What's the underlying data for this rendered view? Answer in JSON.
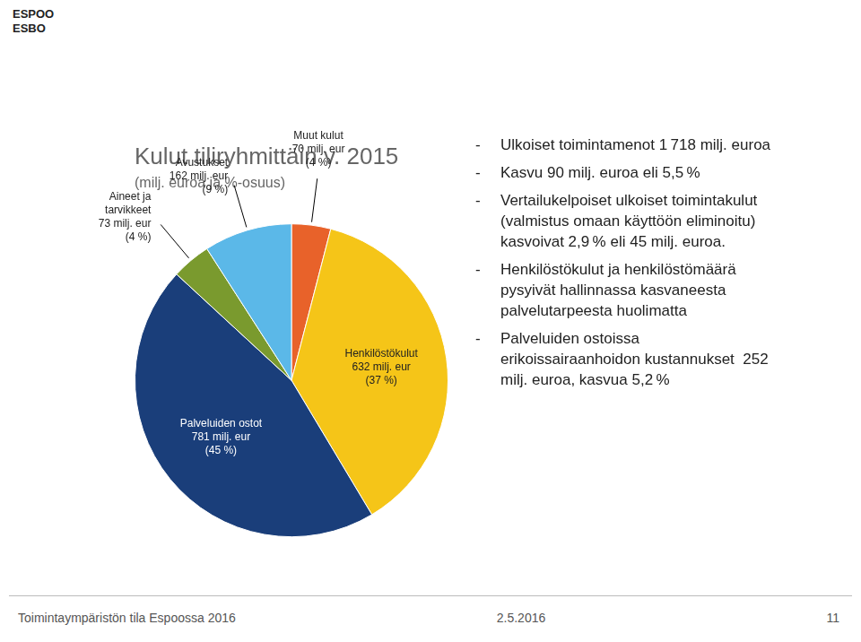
{
  "chart_data": {
    "type": "pie",
    "title": "Kulut tiliryhmittäin v. 2015",
    "subtitle": "(milj. euroa ja %-osuus)",
    "categories": [
      "Muut kulut\n70 milj. eur\n(4 %)",
      "Henkilöstökulut\n632 milj. eur\n(37 %)",
      "Palveluiden ostot\n781 milj. eur\n(45 %)",
      "Aineet ja\ntarvikkeet\n73 milj. eur\n(4 %)",
      "Avustukset\n162 milj. eur\n(9 %)"
    ],
    "values": [
      4,
      37,
      45,
      4,
      9
    ],
    "colors": [
      "#E8622A",
      "#F5C518",
      "#1A3E7A",
      "#7A9A2E",
      "#5BB8E8"
    ],
    "annotations": {
      "logo": [
        "ESPOO",
        "ESBO"
      ],
      "bullets": [
        "Ulkoiset toimintamenot 1 718 milj. euroa",
        "Kasvu 90 milj. euroa eli 5,5 %",
        "Vertailukelpoiset ulkoiset toimintakulut\n(valmistus omaan käyttöön eliminoitu)\nkasvoivat 2,9 % eli 45 milj. euroa.",
        "Henkilöstökulut ja henkilöstömäärä\npysyivät hallinnassa kasvaneesta\npalvelutarpeesta huolimatta",
        "Palveluiden ostoissa\nerikoissairaanhoidon kustannukset  252\nmilj. euroa, kasvua 5,2 %"
      ],
      "footer": [
        "Toimintaympäristön tila Espoossa 2016",
        "2.5.2016",
        "11"
      ]
    }
  }
}
